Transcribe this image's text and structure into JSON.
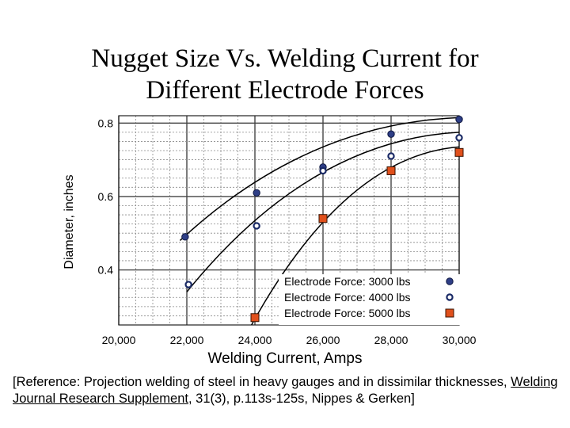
{
  "title_line1": "Nugget Size Vs. Welding Current for",
  "title_line2": "Different Electrode Forces",
  "reference": {
    "before": "[Reference:  Projection welding of steel in heavy gauges and in dissimilar thicknesses, ",
    "underlined": "Welding Journal Research Supplement",
    "after": ", 31(3), p.113s-125s, Nippes & Gerken]"
  },
  "chart_data": {
    "type": "scatter",
    "xlabel": "Welding Current, Amps",
    "ylabel": "Diameter, inches",
    "xlim": [
      20000,
      30000
    ],
    "ylim": [
      0.25,
      0.82
    ],
    "x_ticks": [
      20000,
      22000,
      24000,
      26000,
      28000,
      30000
    ],
    "x_tick_labels": [
      "20,000",
      "22,000",
      "24,000",
      "26,000",
      "28,000",
      "30,000"
    ],
    "y_ticks": [
      0.4,
      0.6,
      0.8
    ],
    "y_tick_labels": [
      "0.4",
      "0.6",
      "0.8"
    ],
    "grid": true,
    "legend_position": "bottom-right",
    "series": [
      {
        "name": "Electrode Force: 3000 lbs",
        "marker": "filled-circle",
        "color": "#2e3e86",
        "x": [
          21950,
          24050,
          26000,
          28000,
          30000
        ],
        "y": [
          0.49,
          0.61,
          0.68,
          0.77,
          0.81
        ],
        "curve_x": [
          21800,
          30000
        ],
        "curve_y": [
          0.48,
          0.815
        ]
      },
      {
        "name": "Electrode Force: 4000 lbs",
        "marker": "open-circle",
        "color": "#1a2a66",
        "x": [
          22050,
          24050,
          26000,
          28000,
          30000
        ],
        "y": [
          0.36,
          0.52,
          0.67,
          0.71,
          0.76
        ],
        "curve_x": [
          22000,
          30000
        ],
        "curve_y": [
          0.34,
          0.775
        ]
      },
      {
        "name": "Electrode Force: 5000 lbs",
        "marker": "square",
        "color": "#e0501c",
        "x": [
          24000,
          26000,
          28000,
          30000
        ],
        "y": [
          0.27,
          0.54,
          0.67,
          0.72
        ],
        "curve_x": [
          23900,
          30000
        ],
        "curve_y": [
          0.25,
          0.735
        ]
      }
    ]
  }
}
